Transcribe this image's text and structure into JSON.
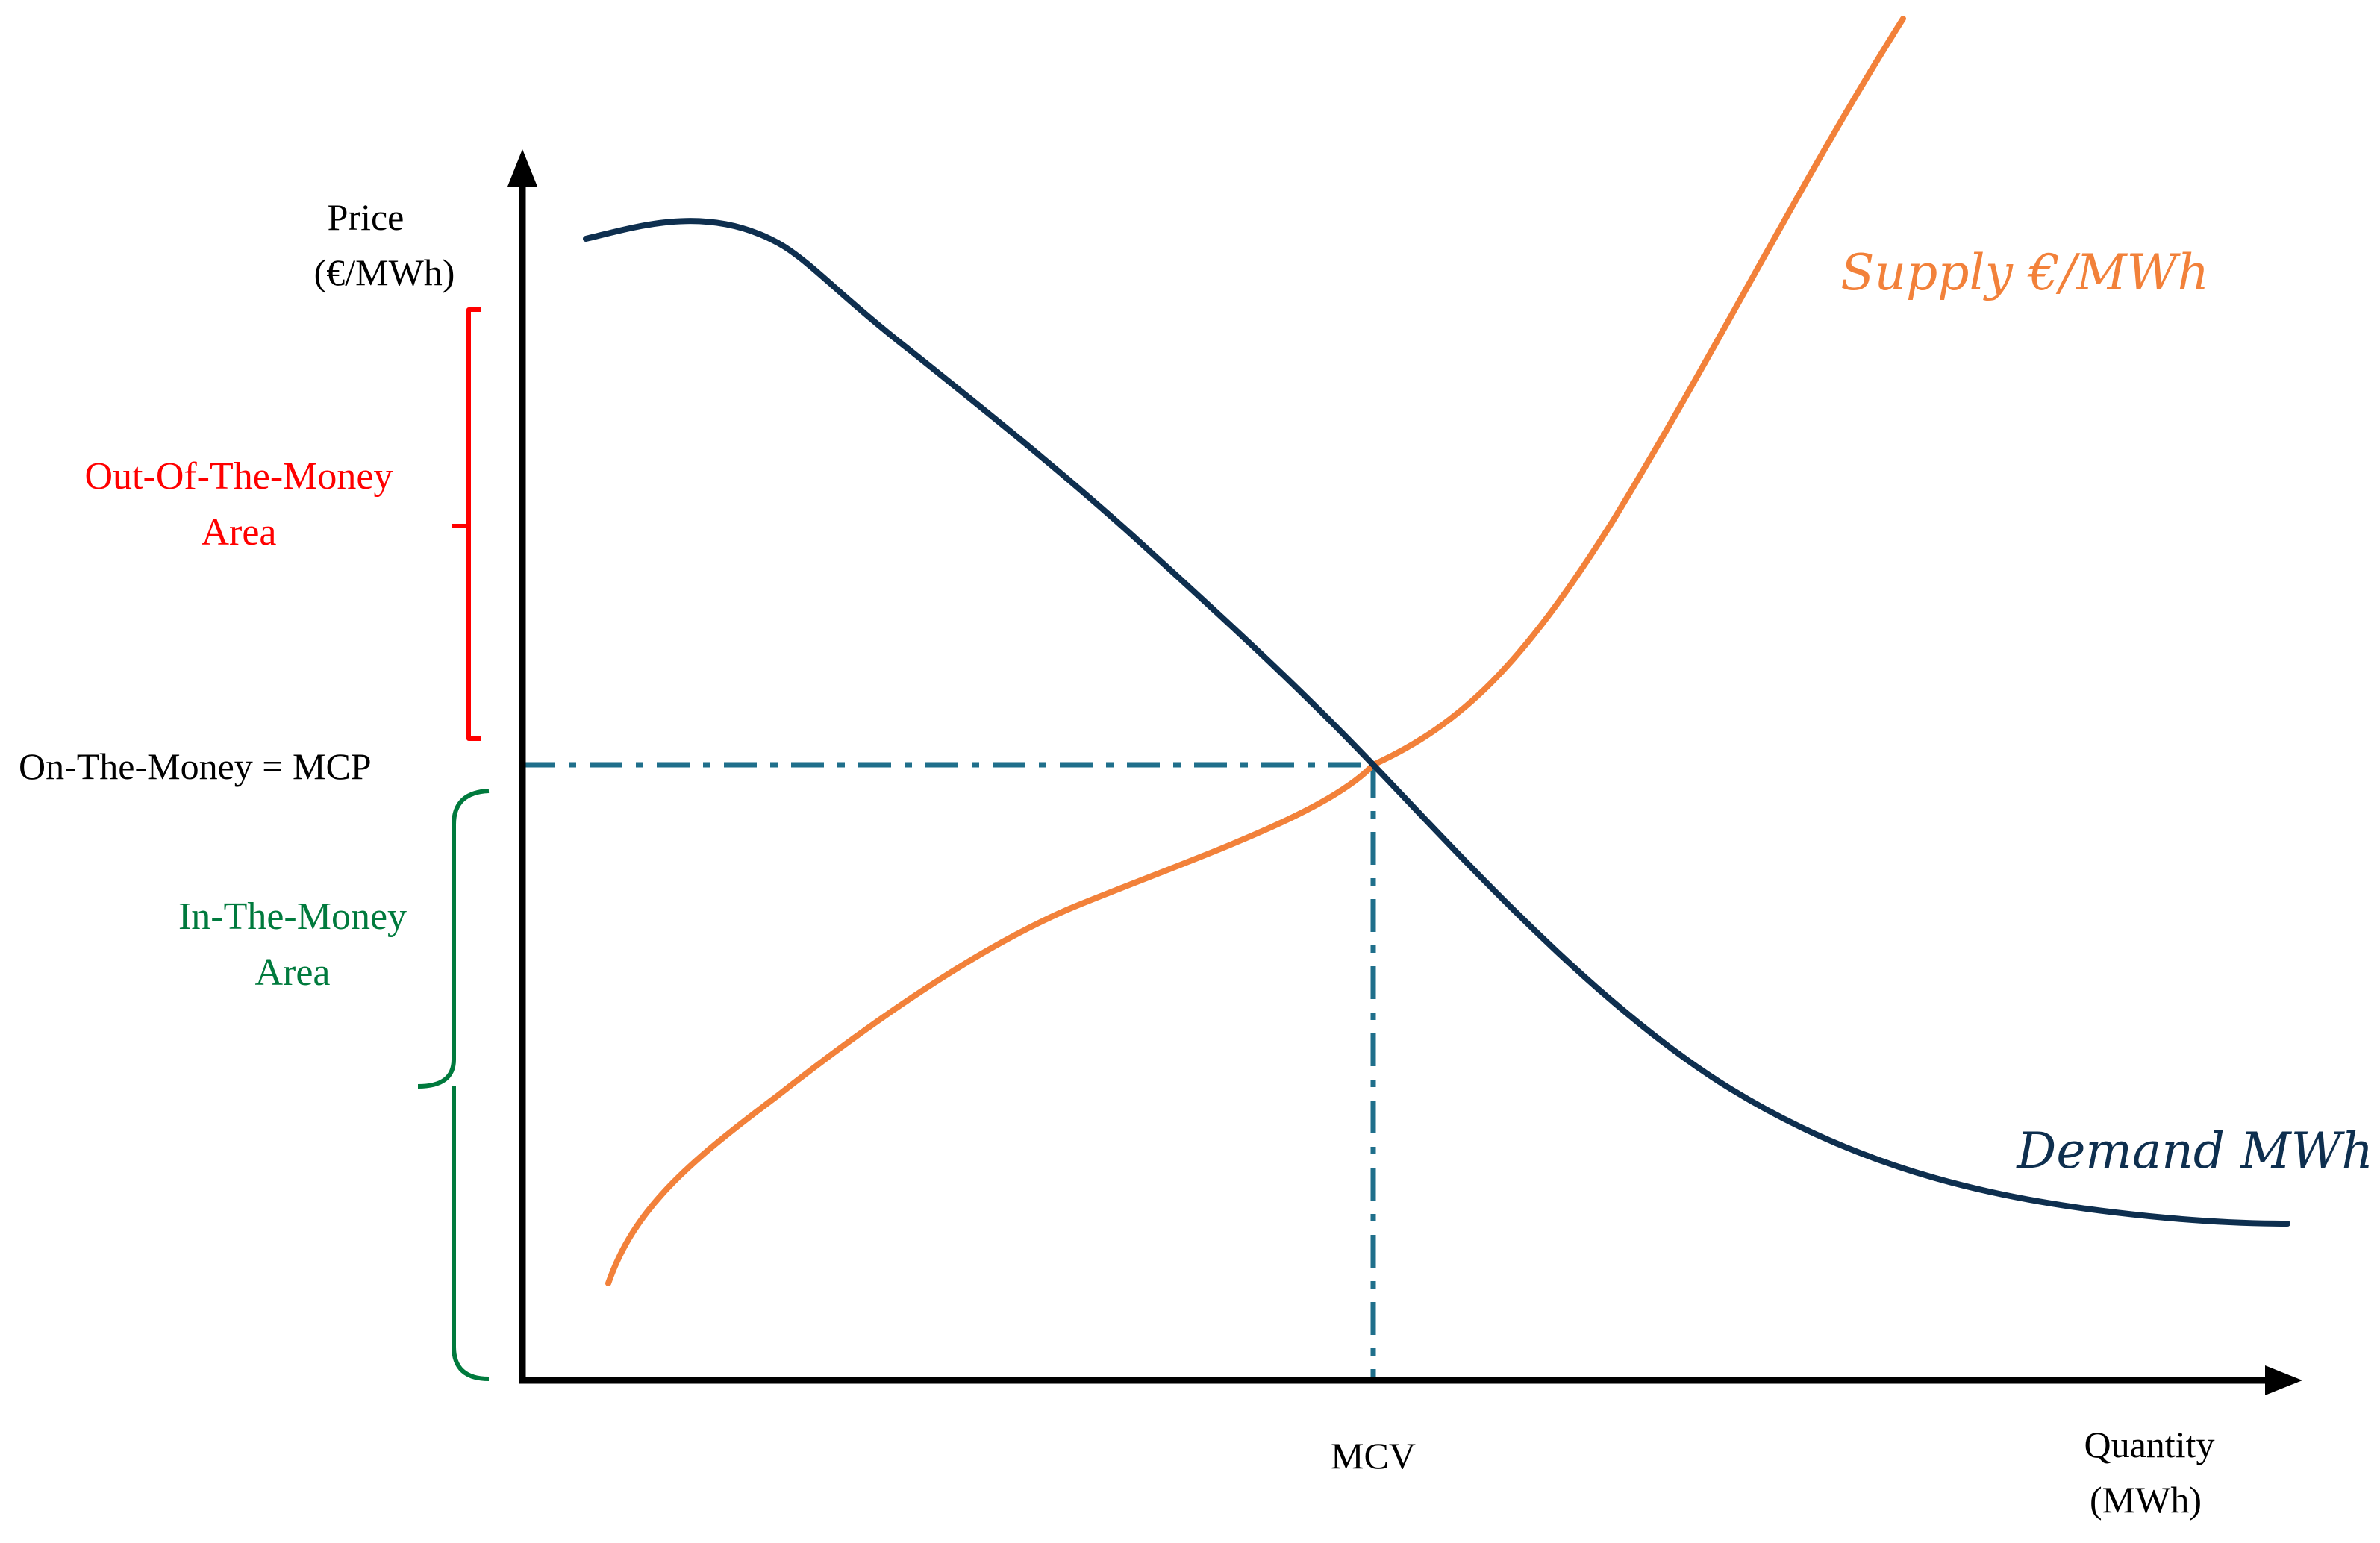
{
  "axes": {
    "y_label_line1": "Price",
    "y_label_line2": "(€/MWh)",
    "x_label_line1": "Quantity",
    "x_label_line2": "(MWh)"
  },
  "labels": {
    "supply": "Supply €/MWh",
    "demand": "Demand MWh",
    "mcv": "MCV",
    "mcp": "On-The-Money = MCP"
  },
  "areas": {
    "out_of_money": {
      "line1": "Out-Of-The-Money",
      "line2": "Area",
      "color": "#ff0000"
    },
    "in_the_money": {
      "line1": "In-The-Money",
      "line2": "Area",
      "color": "#007a3d"
    }
  },
  "colors": {
    "axis": "#000000",
    "demand": "#0e2f4f",
    "supply": "#f2813a",
    "dashed_guides": "#1f6f8b"
  }
}
